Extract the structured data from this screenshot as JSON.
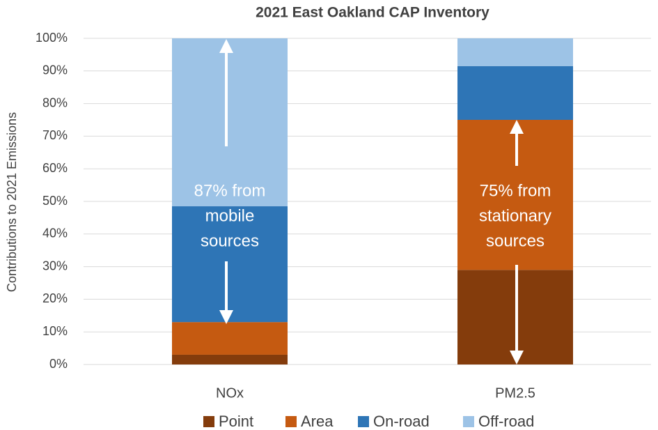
{
  "chart_data": {
    "type": "stacked_bar",
    "title": "2021 East Oakland CAP Inventory",
    "y_label": "Contributions to 2021 Emissions",
    "categories": [
      "NOx",
      "PM2.5"
    ],
    "series": [
      {
        "name": "Point",
        "color": "#843c0c",
        "values": [
          3,
          29
        ]
      },
      {
        "name": "Area",
        "color": "#c55a11",
        "values": [
          10,
          46
        ]
      },
      {
        "name": "On-road",
        "color": "#2e75b6",
        "values": [
          35.5,
          16.5
        ]
      },
      {
        "name": "Off-road",
        "color": "#9dc3e6",
        "values": [
          51.5,
          8.5
        ]
      }
    ],
    "ylim": [
      0,
      100
    ],
    "yticks": [
      {
        "value": 0,
        "label": "0%"
      },
      {
        "value": 10,
        "label": "10%"
      },
      {
        "value": 20,
        "label": "20%"
      },
      {
        "value": 30,
        "label": "30%"
      },
      {
        "value": 40,
        "label": "40%"
      },
      {
        "value": 50,
        "label": "50%"
      },
      {
        "value": 60,
        "label": "60%"
      },
      {
        "value": 70,
        "label": "70%"
      },
      {
        "value": 80,
        "label": "80%"
      },
      {
        "value": 90,
        "label": "90%"
      },
      {
        "value": 100,
        "label": "100%"
      }
    ],
    "grid": true,
    "legend": "bottom",
    "annotations": [
      [
        "87% from",
        "mobile",
        "sources"
      ],
      [
        "75% from",
        "stationary",
        "sources"
      ]
    ]
  }
}
